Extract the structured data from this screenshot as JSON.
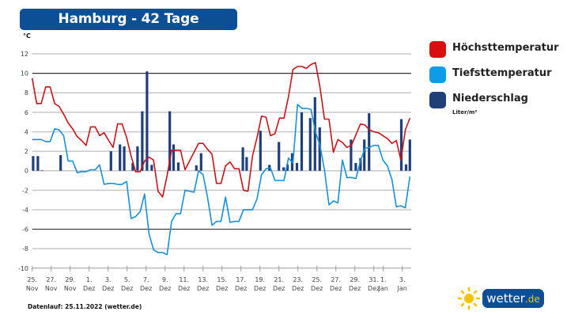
{
  "header": {
    "title": "Hamburg - 42 Tage Wettertrend",
    "unit": "°C"
  },
  "legend": {
    "items": [
      {
        "label": "Höchsttemperatur",
        "color": "#d90f0f"
      },
      {
        "label": "Tiefsttemperatur",
        "color": "#0f9be6"
      },
      {
        "label": "Niederschlag",
        "color": "#1f3f78"
      }
    ],
    "precip_unit": "Liter/m²"
  },
  "footer": {
    "data_run": "Datenlauf: 25.11.2022 (wetter.de)"
  },
  "logo": {
    "name": "wetter",
    "tld": ".de"
  },
  "chart_data": {
    "type": "line+bar",
    "title": "Hamburg - 42 Tage Wettertrend",
    "ylabel": "°C",
    "ylim": [
      -10,
      12
    ],
    "yticks": [
      12,
      10,
      8,
      6,
      4,
      2,
      0,
      -2,
      -4,
      -6,
      -8,
      -10
    ],
    "xlim_days": [
      0,
      39.8
    ],
    "xticks": [
      {
        "day": 0,
        "l1": "25.",
        "l2": "Nov"
      },
      {
        "day": 2,
        "l1": "27.",
        "l2": "Nov"
      },
      {
        "day": 4,
        "l1": "29.",
        "l2": "Nov"
      },
      {
        "day": 6,
        "l1": "1.",
        "l2": "Dez"
      },
      {
        "day": 8,
        "l1": "3.",
        "l2": "Dez"
      },
      {
        "day": 10,
        "l1": "5.",
        "l2": "Dez"
      },
      {
        "day": 12,
        "l1": "7.",
        "l2": "Dez"
      },
      {
        "day": 14,
        "l1": "9.",
        "l2": "Dez"
      },
      {
        "day": 16,
        "l1": "11.",
        "l2": "Dez"
      },
      {
        "day": 18,
        "l1": "13.",
        "l2": "Dez"
      },
      {
        "day": 20,
        "l1": "15.",
        "l2": "Dez"
      },
      {
        "day": 22,
        "l1": "17.",
        "l2": "Dez"
      },
      {
        "day": 24,
        "l1": "19.",
        "l2": "Dez"
      },
      {
        "day": 26,
        "l1": "21.",
        "l2": "Dez"
      },
      {
        "day": 28,
        "l1": "23.",
        "l2": "Dez"
      },
      {
        "day": 30,
        "l1": "25.",
        "l2": "Dez"
      },
      {
        "day": 32,
        "l1": "27.",
        "l2": "Dez"
      },
      {
        "day": 34,
        "l1": "29.",
        "l2": "Dez"
      },
      {
        "day": 36,
        "l1": "31.",
        "l2": "Dez"
      },
      {
        "day": 37,
        "l1": "1.",
        "l2": "Jan"
      },
      {
        "day": 39,
        "l1": "3.",
        "l2": "Jan"
      }
    ],
    "series": [
      {
        "name": "Höchsttemperatur",
        "type": "line",
        "values": [
          9.5,
          6.9,
          6.9,
          8.6,
          8.6,
          6.9,
          6.6,
          5.8,
          4.9,
          4.3,
          3.5,
          3.1,
          2.6,
          4.5,
          4.5,
          3.6,
          3.9,
          3.1,
          2.4,
          4.8,
          4.8,
          3.4,
          1.5,
          -0.1,
          -0.1,
          1.0,
          1.4,
          1.1,
          -2.1,
          -2.7,
          -0.5,
          2.1,
          2.1,
          2.1,
          0.1,
          1.0,
          1.9,
          2.8,
          2.8,
          2.2,
          1.7,
          -1.3,
          -1.3,
          0.5,
          0.9,
          0.2,
          0.2,
          -2.0,
          -2.1,
          1.5,
          3.4,
          5.6,
          5.5,
          3.6,
          3.8,
          5.4,
          5.4,
          7.6,
          10.4,
          10.7,
          10.7,
          10.5,
          10.9,
          11.1,
          8.6,
          5.3,
          5.3,
          1.9,
          3.2,
          2.9,
          2.4,
          2.6,
          3.7,
          4.8,
          4.7,
          4.2,
          4.0,
          3.9,
          3.6,
          3.3,
          2.8,
          3.1,
          1.1,
          4.2,
          5.4
        ]
      },
      {
        "name": "Tiefsttemperatur",
        "type": "line",
        "values": [
          3.2,
          3.2,
          3.2,
          3.0,
          3.0,
          4.3,
          4.2,
          3.6,
          1.0,
          1.0,
          -0.2,
          -0.1,
          -0.1,
          0.1,
          0.1,
          0.6,
          -1.4,
          -1.3,
          -1.3,
          -1.4,
          -1.4,
          -1.1,
          -4.9,
          -4.7,
          -4.2,
          -2.4,
          -6.5,
          -8.1,
          -8.4,
          -8.4,
          -8.6,
          -5.2,
          -4.4,
          -4.4,
          -2.0,
          -2.1,
          -2.2,
          0.0,
          -0.4,
          -2.7,
          -5.6,
          -5.2,
          -5.2,
          -2.7,
          -5.3,
          -5.2,
          -5.2,
          -4.0,
          -4.0,
          -4.0,
          -2.9,
          -0.4,
          0.2,
          0.3,
          -1.0,
          -1.0,
          -1.0,
          1.3,
          0.8,
          6.8,
          6.4,
          6.4,
          6.3,
          4.0,
          2.6,
          0.1,
          -3.5,
          -3.1,
          -3.3,
          1.1,
          -0.7,
          -0.7,
          -0.8,
          1.0,
          2.3,
          2.4,
          2.6,
          2.6,
          1.1,
          0.5,
          -0.9,
          -3.7,
          -3.6,
          -3.8,
          -0.6
        ]
      },
      {
        "name": "Niederschlag",
        "type": "bar",
        "unit": "Liter/m²",
        "points": [
          {
            "day": 0.1,
            "v": 1.5
          },
          {
            "day": 0.6,
            "v": 1.5
          },
          {
            "day": 1.05,
            "v": 0.05
          },
          {
            "day": 3.0,
            "v": 1.6
          },
          {
            "day": 8.3,
            "v": 2.0
          },
          {
            "day": 9.25,
            "v": 2.7
          },
          {
            "day": 9.7,
            "v": 2.5
          },
          {
            "day": 10.6,
            "v": 0.8
          },
          {
            "day": 11.1,
            "v": 2.5
          },
          {
            "day": 11.6,
            "v": 6.1
          },
          {
            "day": 12.1,
            "v": 10.2
          },
          {
            "day": 12.6,
            "v": 0.6
          },
          {
            "day": 14.5,
            "v": 6.1
          },
          {
            "day": 14.9,
            "v": 2.7
          },
          {
            "day": 15.4,
            "v": 0.85
          },
          {
            "day": 17.3,
            "v": 0.55
          },
          {
            "day": 17.8,
            "v": 1.8
          },
          {
            "day": 22.2,
            "v": 2.4
          },
          {
            "day": 22.6,
            "v": 1.4
          },
          {
            "day": 24.05,
            "v": 4.1
          },
          {
            "day": 25.0,
            "v": 0.6
          },
          {
            "day": 26.0,
            "v": 2.95
          },
          {
            "day": 26.5,
            "v": 0.35
          },
          {
            "day": 26.9,
            "v": 0.65
          },
          {
            "day": 27.4,
            "v": 1.8
          },
          {
            "day": 27.9,
            "v": 0.8
          },
          {
            "day": 28.4,
            "v": 6.0
          },
          {
            "day": 29.3,
            "v": 5.4
          },
          {
            "day": 29.8,
            "v": 7.55
          },
          {
            "day": 30.3,
            "v": 4.45
          },
          {
            "day": 33.6,
            "v": 3.2
          },
          {
            "day": 34.1,
            "v": 0.8
          },
          {
            "day": 34.6,
            "v": 1.3
          },
          {
            "day": 35.0,
            "v": 3.2
          },
          {
            "day": 35.5,
            "v": 5.9
          },
          {
            "day": 38.9,
            "v": 5.3
          },
          {
            "day": 39.4,
            "v": 0.65
          },
          {
            "day": 39.8,
            "v": 3.2
          }
        ]
      }
    ],
    "grid": true,
    "legend_position": "right"
  }
}
